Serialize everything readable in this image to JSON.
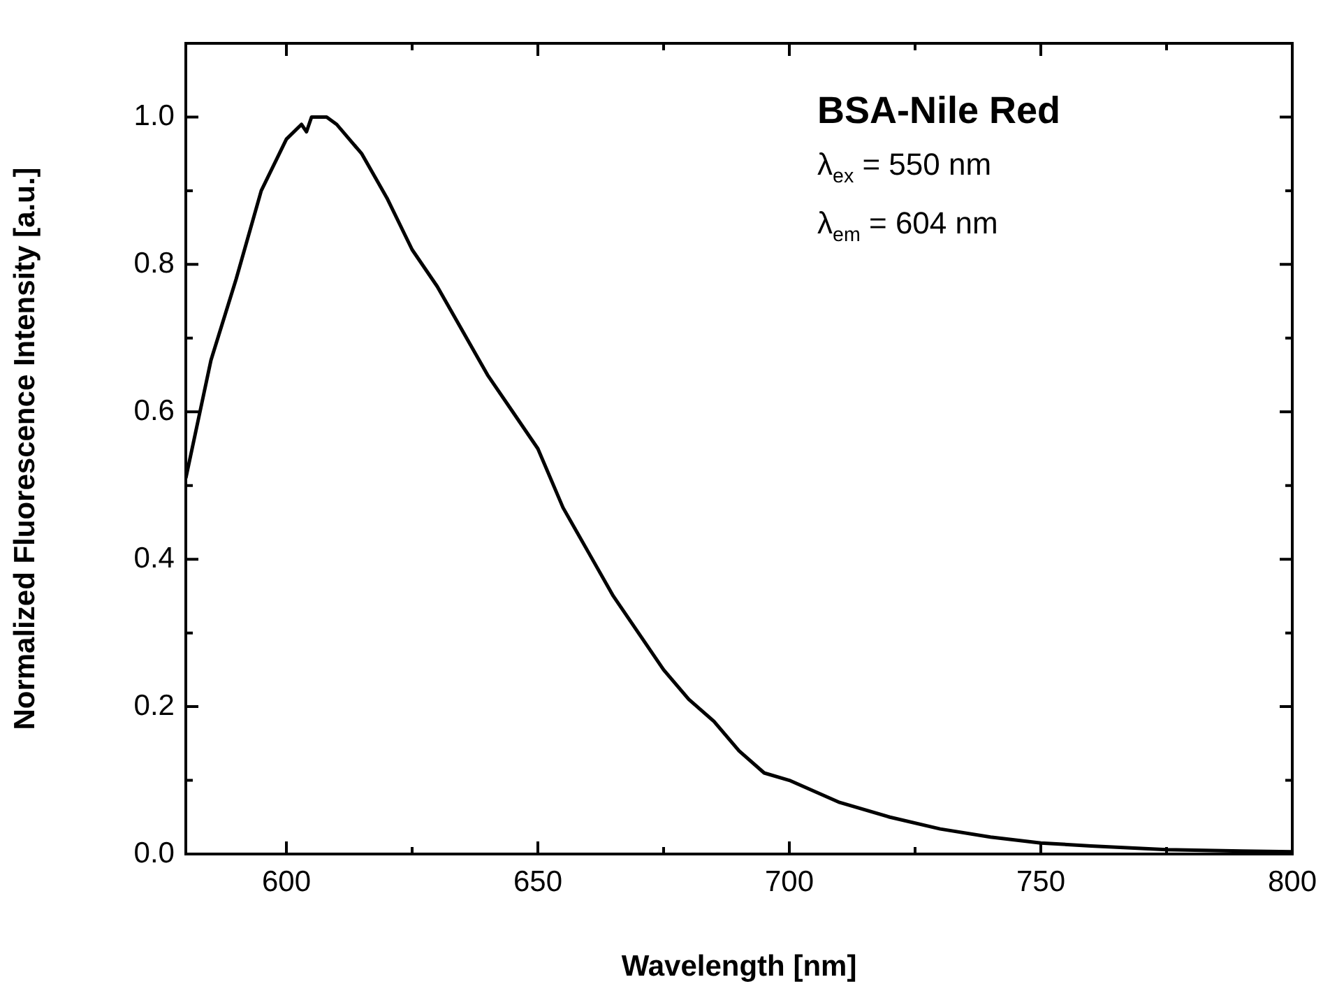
{
  "chart_data": {
    "type": "line",
    "title": "BSA-Nile Red",
    "xlabel": "Wavelength [nm]",
    "ylabel": "Normalized Fluorescence Intensity [a.u.]",
    "annotations": [
      "λ$_{ex}$ = 550 nm",
      "λ$_{em}$ = 604 nm"
    ],
    "x": [
      580,
      585,
      590,
      595,
      600,
      603,
      604,
      605,
      608,
      610,
      615,
      620,
      625,
      630,
      635,
      640,
      645,
      650,
      655,
      660,
      665,
      670,
      675,
      680,
      685,
      690,
      695,
      700,
      710,
      720,
      730,
      740,
      750,
      760,
      775,
      790,
      800
    ],
    "series": [
      {
        "color": "#000000",
        "values": [
          0.51,
          0.67,
          0.78,
          0.9,
          0.97,
          0.99,
          0.98,
          1.0,
          1.0,
          0.99,
          0.95,
          0.89,
          0.82,
          0.77,
          0.71,
          0.65,
          0.6,
          0.55,
          0.47,
          0.41,
          0.35,
          0.3,
          0.25,
          0.21,
          0.18,
          0.14,
          0.11,
          0.1,
          0.07,
          0.05,
          0.034,
          0.023,
          0.015,
          0.011,
          0.006,
          0.004,
          0.003
        ]
      }
    ],
    "xlim": [
      580,
      800
    ],
    "ylim": [
      0,
      1.1
    ],
    "xticks": [
      600,
      {
        "value": 625,
        "label": null
      },
      650,
      {
        "value": 675,
        "label": null
      },
      700,
      {
        "value": 725,
        "label": null
      },
      750,
      {
        "value": 775,
        "label": null
      },
      800
    ],
    "yticks": [
      {
        "value": 0,
        "label": "0.0"
      },
      {
        "value": 0.1,
        "label": null
      },
      {
        "value": 0.2,
        "label": "0.2"
      },
      {
        "value": 0.3,
        "label": null
      },
      {
        "value": 0.4,
        "label": "0.4"
      },
      {
        "value": 0.5,
        "label": null
      },
      {
        "value": 0.6,
        "label": "0.6"
      },
      {
        "value": 0.7,
        "label": null
      },
      {
        "value": 0.8,
        "label": "0.8"
      },
      {
        "value": 0.9,
        "label": null
      },
      {
        "value": 1.0,
        "label": "1.0"
      }
    ],
    "grid": false,
    "legend": false,
    "marker": "none",
    "line_style": "solid"
  }
}
